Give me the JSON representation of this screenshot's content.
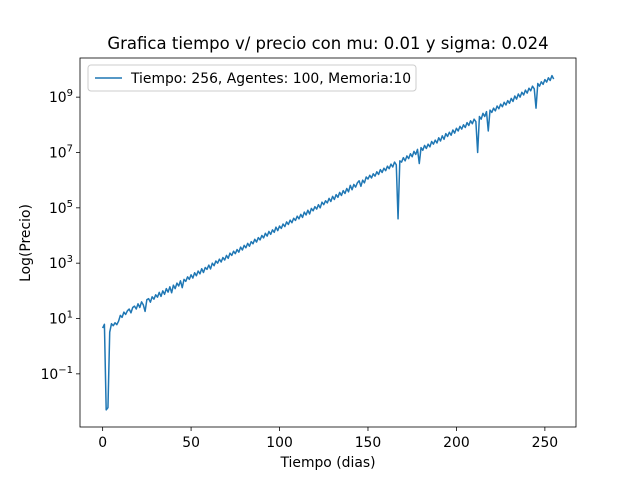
{
  "chart_data": {
    "type": "line",
    "title": "Grafica tiempo v/ precio con mu: 0.01 y sigma: 0.024",
    "x_label": "Tiempo (dias)",
    "y_label": "Log(Precio)",
    "yscale": "log",
    "legend": "upper left",
    "grid": false,
    "xlim": [
      -12.8,
      267.6
    ],
    "ylim": [
      0.0012,
      26000000000.0
    ],
    "xticks": [
      0,
      50,
      100,
      150,
      200,
      250
    ],
    "yticks": [
      {
        "value": 0.1,
        "label": "10",
        "exponent": "−1"
      },
      {
        "value": 10,
        "label": "10",
        "exponent": "1"
      },
      {
        "value": 1000,
        "label": "10",
        "exponent": "3"
      },
      {
        "value": 100000,
        "label": "10",
        "exponent": "5"
      },
      {
        "value": 10000000,
        "label": "10",
        "exponent": "7"
      },
      {
        "value": 1000000000,
        "label": "10",
        "exponent": "9"
      }
    ],
    "x": [
      0,
      1,
      2,
      3,
      4,
      5,
      6,
      7,
      8,
      9,
      10,
      11,
      12,
      13,
      14,
      15,
      16,
      17,
      18,
      19,
      20,
      21,
      22,
      23,
      24,
      25,
      26,
      27,
      28,
      29,
      30,
      31,
      32,
      33,
      34,
      35,
      36,
      37,
      38,
      39,
      40,
      41,
      42,
      43,
      44,
      45,
      46,
      47,
      48,
      49,
      50,
      51,
      52,
      53,
      54,
      55,
      56,
      57,
      58,
      59,
      60,
      61,
      62,
      63,
      64,
      65,
      66,
      67,
      68,
      69,
      70,
      71,
      72,
      73,
      74,
      75,
      76,
      77,
      78,
      79,
      80,
      81,
      82,
      83,
      84,
      85,
      86,
      87,
      88,
      89,
      90,
      91,
      92,
      93,
      94,
      95,
      96,
      97,
      98,
      99,
      100,
      101,
      102,
      103,
      104,
      105,
      106,
      107,
      108,
      109,
      110,
      111,
      112,
      113,
      114,
      115,
      116,
      117,
      118,
      119,
      120,
      121,
      122,
      123,
      124,
      125,
      126,
      127,
      128,
      129,
      130,
      131,
      132,
      133,
      134,
      135,
      136,
      137,
      138,
      139,
      140,
      141,
      142,
      143,
      144,
      145,
      146,
      147,
      148,
      149,
      150,
      151,
      152,
      153,
      154,
      155,
      156,
      157,
      158,
      159,
      160,
      161,
      162,
      163,
      164,
      165,
      166,
      167,
      168,
      169,
      170,
      171,
      172,
      173,
      174,
      175,
      176,
      177,
      178,
      179,
      180,
      181,
      182,
      183,
      184,
      185,
      186,
      187,
      188,
      189,
      190,
      191,
      192,
      193,
      194,
      195,
      196,
      197,
      198,
      199,
      200,
      201,
      202,
      203,
      204,
      205,
      206,
      207,
      208,
      209,
      210,
      211,
      212,
      213,
      214,
      215,
      216,
      217,
      218,
      219,
      220,
      221,
      222,
      223,
      224,
      225,
      226,
      227,
      228,
      229,
      230,
      231,
      232,
      233,
      234,
      235,
      236,
      237,
      238,
      239,
      240,
      241,
      242,
      243,
      244,
      245,
      246,
      247,
      248,
      249,
      250,
      251,
      252,
      253,
      254,
      255
    ],
    "series": [
      {
        "name": "Tiempo: 256, Agentes: 100, Memoria:10",
        "color": "#1f77b4",
        "values": [
          4.5,
          6.2,
          0.005,
          0.006,
          3.2,
          6.5,
          5.5,
          7,
          6,
          8,
          13.0,
          11.0,
          17.0,
          14.0,
          19.0,
          22.0,
          16.0,
          25.0,
          28.0,
          22.0,
          34.0,
          25.0,
          40.0,
          31.0,
          18.0,
          48.0,
          52.0,
          39.0,
          61.0,
          50.0,
          72.0,
          59.0,
          88.0,
          63.0,
          100.0,
          75.0,
          120.0,
          90.0,
          140.0,
          85.0,
          160.0,
          120.0,
          190.0,
          150.0,
          230.0,
          130.0,
          260.0,
          220.0,
          320.0,
          260.0,
          380.0,
          290.0,
          450.0,
          350.0,
          520.0,
          410.0,
          630.0,
          460.0,
          700.0,
          600.0,
          850.0,
          620.0,
          1000.0,
          810.0,
          1200.0,
          1000.0,
          1400.0,
          1100.0,
          1600.0,
          1300.0,
          1900.0,
          1500.0,
          2300.0,
          1900.0,
          2700.0,
          2200.0,
          3100.0,
          2500.0,
          3800.0,
          3000.0,
          4400.0,
          3600.0,
          5200.0,
          4100.0,
          6000.0,
          5000.0,
          7300.0,
          5800.0,
          8400.0,
          6900.0,
          10000.0,
          8200.0,
          12000.0,
          9500.0,
          14000.0,
          11000.0,
          16000.0,
          13000.0,
          20000.0,
          15000.0,
          22000.0,
          18000.0,
          26000.0,
          21000.0,
          31000.0,
          25000.0,
          36000.0,
          29000.0,
          42000.0,
          35000.0,
          50000.0,
          40000.0,
          58000.0,
          45000.0,
          70000.0,
          55000.0,
          82000.0,
          60000.0,
          95000.0,
          78000.0,
          110000.0,
          90000.0,
          130000.0,
          100000.0,
          160000.0,
          130000.0,
          180000.0,
          150000.0,
          220000.0,
          170000.0,
          260000.0,
          200000.0,
          300000.0,
          240000.0,
          360000.0,
          280000.0,
          420000.0,
          330000.0,
          500000.0,
          380000.0,
          650000.0,
          450000.0,
          700000.0,
          560000.0,
          800000.0,
          950000.0,
          600000.0,
          1000000.0,
          800000.0,
          1300000.0,
          1100000.0,
          1500000.0,
          1200000.0,
          1700000.0,
          1400000.0,
          2000000.0,
          1600000.0,
          2400000.0,
          1900000.0,
          2700000.0,
          2200000.0,
          3200000.0,
          2600000.0,
          3800000.0,
          3000000.0,
          4500000.0,
          3600000.0,
          40000.0,
          5000000.0,
          4500000.0,
          6500000.0,
          5000000.0,
          7500000.0,
          6000000.0,
          9000000.0,
          7000000.0,
          11000000.0,
          8500000.0,
          13000000.0,
          4000000.0,
          15000000.0,
          12000000.0,
          18000000.0,
          14000000.0,
          20000000.0,
          16000000.0,
          25000000.0,
          20000000.0,
          28000000.0,
          22000000.0,
          34000000.0,
          26000000.0,
          40000000.0,
          30000000.0,
          48000000.0,
          38000000.0,
          54000000.0,
          42000000.0,
          65000000.0,
          50000000.0,
          75000000.0,
          60000000.0,
          88000000.0,
          70000000.0,
          100000000.0,
          80000000.0,
          120000000.0,
          95000000.0,
          140000000.0,
          110000000.0,
          160000000.0,
          130000000.0,
          10000000.0,
          200000000.0,
          160000000.0,
          260000000.0,
          200000000.0,
          300000000.0,
          60000000.0,
          340000000.0,
          280000000.0,
          400000000.0,
          320000000.0,
          480000000.0,
          380000000.0,
          560000000.0,
          450000000.0,
          650000000.0,
          520000000.0,
          750000000.0,
          600000000.0,
          900000000.0,
          700000000.0,
          1100000000.0,
          850000000.0,
          1300000000.0,
          1000000000.0,
          1500000000.0,
          1200000000.0,
          1800000000.0,
          1400000000.0,
          2100000000.0,
          1700000000.0,
          2500000000.0,
          2000000000.0,
          400000000.0,
          3100000000.0,
          2500000000.0,
          3600000000.0,
          2900000000.0,
          4300000000.0,
          3500000000.0,
          5000000000.0,
          4000000000.0,
          6000000000.0,
          4500000000.0
        ]
      }
    ]
  }
}
